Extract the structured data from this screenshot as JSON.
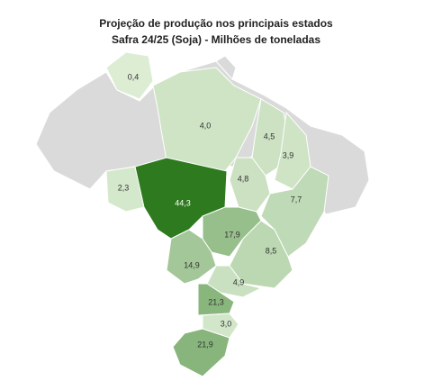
{
  "chart_data": {
    "type": "choropleth",
    "title": "Projeção de produção nos principais estados",
    "subtitle": "Safra 24/25 (Soja) - Milhões de toneladas",
    "values": [
      0.4,
      4.0,
      4.5,
      3.9,
      4.8,
      7.7,
      2.3,
      44.3,
      17.9,
      8.5,
      14.9,
      4.9,
      21.3,
      3.0,
      21.9
    ],
    "value_labels": [
      "0,4",
      "4,0",
      "4,5",
      "3,9",
      "4,8",
      "7,7",
      "2,3",
      "44,3",
      "17,9",
      "8,5",
      "14,9",
      "4,9",
      "21,3",
      "3,0",
      "21,9"
    ],
    "colors": [
      "#dcedd4",
      "#2e7a1e"
    ]
  }
}
